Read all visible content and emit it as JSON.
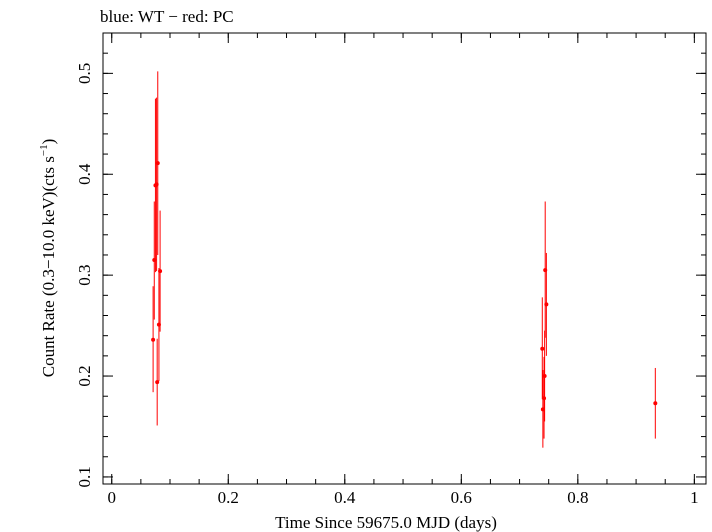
{
  "chart_data": {
    "type": "scatter",
    "title": "blue: WT − red: PC",
    "xlabel": "Time Since 59675.0 MJD (days)",
    "ylabel_parts": {
      "main": "Count Rate (0.3−10.0 keV)(cts s",
      "sup": "−1",
      "close": ")"
    },
    "xlim": [
      -0.015,
      1.02
    ],
    "ylim": [
      0.093,
      0.54
    ],
    "x_ticks": [
      {
        "value": 0,
        "label": "0"
      },
      {
        "value": 0.2,
        "label": "0.2"
      },
      {
        "value": 0.4,
        "label": "0.4"
      },
      {
        "value": 0.6,
        "label": "0.6"
      },
      {
        "value": 0.8,
        "label": "0.8"
      },
      {
        "value": 1.0,
        "label": "1"
      }
    ],
    "x_minor_step": 0.05,
    "y_ticks": [
      {
        "value": 0.1,
        "label": "0.1"
      },
      {
        "value": 0.2,
        "label": "0.2"
      },
      {
        "value": 0.3,
        "label": "0.3"
      },
      {
        "value": 0.4,
        "label": "0.4"
      },
      {
        "value": 0.5,
        "label": "0.5"
      }
    ],
    "y_minor_step": 0.02,
    "grid": false,
    "series": [
      {
        "name": "PC",
        "color": "#ff0000",
        "points": [
          {
            "x": 0.071,
            "y": 0.236,
            "lo": 0.184,
            "hi": 0.289
          },
          {
            "x": 0.073,
            "y": 0.315,
            "lo": 0.256,
            "hi": 0.373
          },
          {
            "x": 0.075,
            "y": 0.389,
            "lo": 0.303,
            "hi": 0.475
          },
          {
            "x": 0.077,
            "y": 0.39,
            "lo": 0.304,
            "hi": 0.476
          },
          {
            "x": 0.078,
            "y": 0.194,
            "lo": 0.151,
            "hi": 0.237
          },
          {
            "x": 0.079,
            "y": 0.411,
            "lo": 0.32,
            "hi": 0.502
          },
          {
            "x": 0.081,
            "y": 0.251,
            "lo": 0.195,
            "hi": 0.307
          },
          {
            "x": 0.083,
            "y": 0.304,
            "lo": 0.244,
            "hi": 0.364
          },
          {
            "x": 0.739,
            "y": 0.227,
            "lo": 0.177,
            "hi": 0.278
          },
          {
            "x": 0.74,
            "y": 0.167,
            "lo": 0.129,
            "hi": 0.206
          },
          {
            "x": 0.742,
            "y": 0.178,
            "lo": 0.138,
            "hi": 0.219
          },
          {
            "x": 0.743,
            "y": 0.2,
            "lo": 0.155,
            "hi": 0.245
          },
          {
            "x": 0.744,
            "y": 0.305,
            "lo": 0.238,
            "hi": 0.373
          },
          {
            "x": 0.746,
            "y": 0.271,
            "lo": 0.22,
            "hi": 0.322
          },
          {
            "x": 0.933,
            "y": 0.173,
            "lo": 0.138,
            "hi": 0.208
          }
        ]
      }
    ]
  }
}
